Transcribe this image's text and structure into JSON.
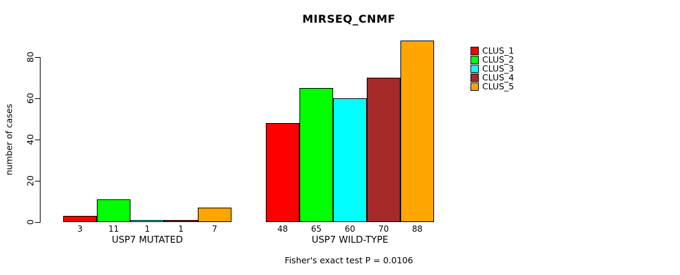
{
  "chart_data": {
    "type": "bar",
    "title": "MIRSEQ_CNMF",
    "ylabel": "number of cases",
    "yticks": [
      0,
      20,
      40,
      60,
      80
    ],
    "ylim": [
      0,
      88
    ],
    "grid": false,
    "legend_position": "top-right",
    "categories": [
      "USP7 MUTATED",
      "USP7 WILD-TYPE"
    ],
    "series": [
      {
        "name": "CLUS_1",
        "color": "#ff0000",
        "values": [
          3,
          48
        ]
      },
      {
        "name": "CLUS_2",
        "color": "#00ff00",
        "values": [
          11,
          65
        ]
      },
      {
        "name": "CLUS_3",
        "color": "#00ffff",
        "values": [
          1,
          60
        ]
      },
      {
        "name": "CLUS_4",
        "color": "#a52a2a",
        "values": [
          1,
          70
        ]
      },
      {
        "name": "CLUS_5",
        "color": "#ffa500",
        "values": [
          7,
          88
        ]
      }
    ],
    "bar_value_labels": {
      "USP7 MUTATED": [
        3,
        11,
        1,
        1,
        7
      ],
      "USP7 WILD-TYPE": [
        48,
        65,
        60,
        70,
        88
      ]
    }
  },
  "footer": {
    "caption": "Fisher's exact test P = 0.0106"
  }
}
